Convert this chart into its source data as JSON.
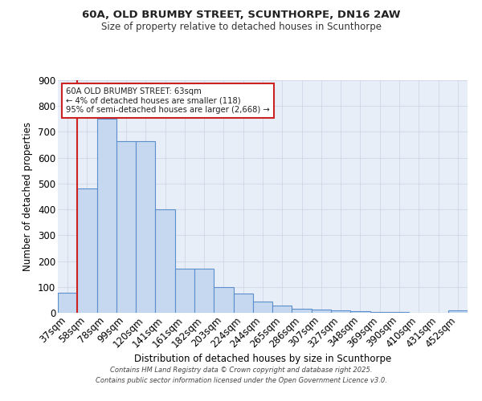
{
  "title_line1": "60A, OLD BRUMBY STREET, SCUNTHORPE, DN16 2AW",
  "title_line2": "Size of property relative to detached houses in Scunthorpe",
  "xlabel": "Distribution of detached houses by size in Scunthorpe",
  "ylabel": "Number of detached properties",
  "bar_labels": [
    "37sqm",
    "58sqm",
    "78sqm",
    "99sqm",
    "120sqm",
    "141sqm",
    "161sqm",
    "182sqm",
    "203sqm",
    "224sqm",
    "244sqm",
    "265sqm",
    "286sqm",
    "307sqm",
    "327sqm",
    "348sqm",
    "369sqm",
    "390sqm",
    "410sqm",
    "431sqm",
    "452sqm"
  ],
  "bar_values": [
    78,
    480,
    750,
    665,
    665,
    400,
    170,
    170,
    100,
    75,
    45,
    28,
    14,
    12,
    9,
    5,
    3,
    2,
    1,
    1,
    8
  ],
  "bar_color": "#c5d8f0",
  "bar_edge_color": "#5b8fcc",
  "grid_color": "#d0d8e8",
  "bg_color": "#e8eef8",
  "vline_x": 1.5,
  "vline_color": "#cc2222",
  "annotation_text": "60A OLD BRUMBY STREET: 63sqm\n← 4% of detached houses are smaller (118)\n95% of semi-detached houses are larger (2,668) →",
  "annotation_box_color": "#cc2222",
  "ylim": [
    0,
    900
  ],
  "yticks": [
    0,
    100,
    200,
    300,
    400,
    500,
    600,
    700,
    800,
    900
  ],
  "footer_line1": "Contains HM Land Registry data © Crown copyright and database right 2025.",
  "footer_line2": "Contains public sector information licensed under the Open Government Licence v3.0."
}
